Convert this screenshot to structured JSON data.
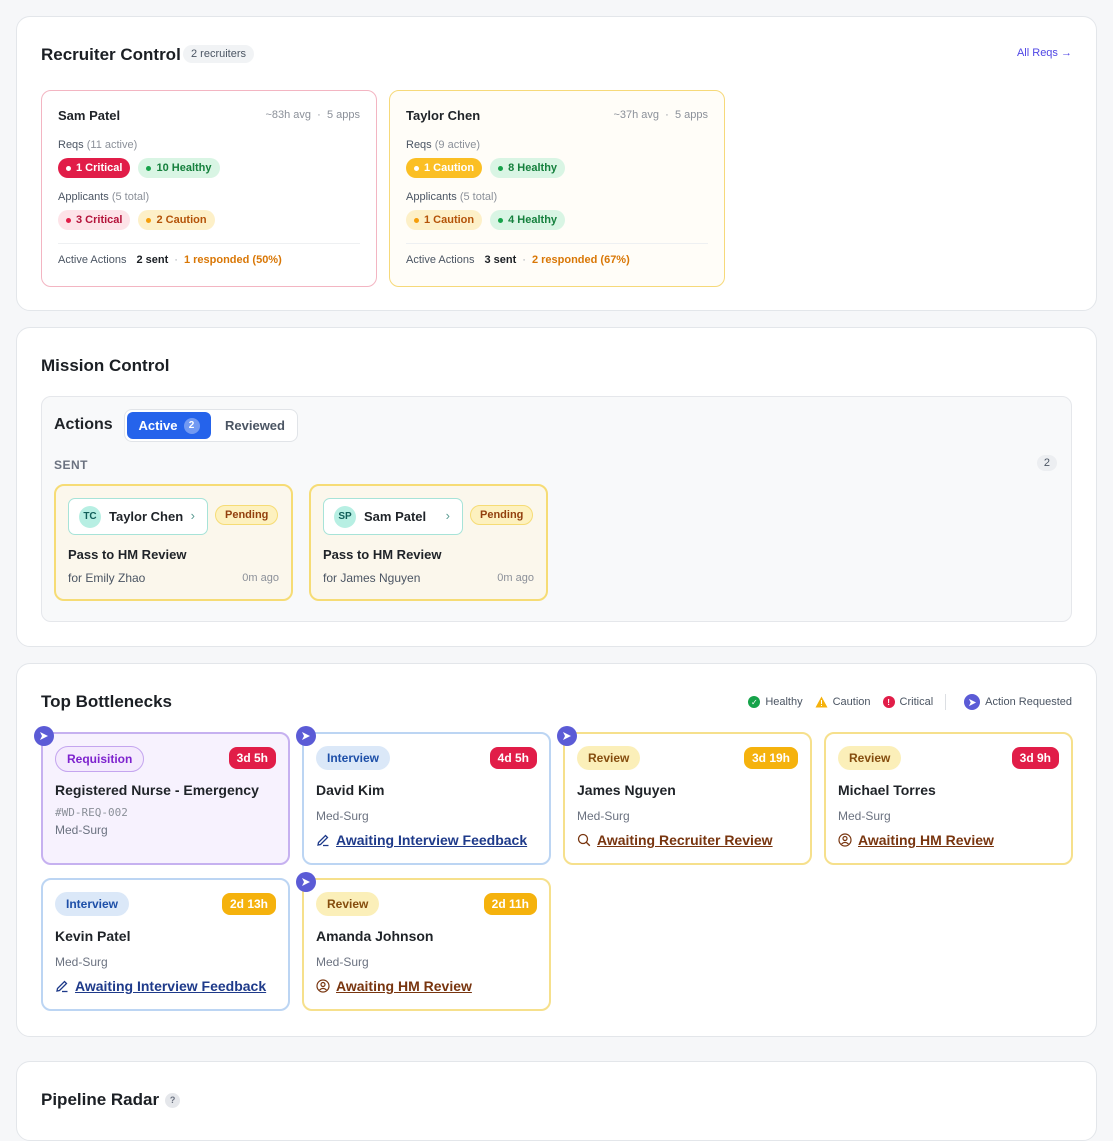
{
  "recruiter_control": {
    "title": "Recruiter Control",
    "count_label": "2 recruiters",
    "all_reqs_label": "All Reqs →",
    "recruiters": [
      {
        "name": "Sam Patel",
        "avg": "~83h avg",
        "apps": "5 apps",
        "reqs_label": "Reqs",
        "reqs_count": "(11 active)",
        "req_chips": [
          "1 Critical",
          "10 Healthy"
        ],
        "applicants_label": "Applicants",
        "applicants_count": "(5 total)",
        "applicant_chips": [
          "3 Critical",
          "2 Caution"
        ],
        "actions_label": "Active Actions",
        "sent": "2 sent",
        "responded": "1 responded (50%)"
      },
      {
        "name": "Taylor Chen",
        "avg": "~37h avg",
        "apps": "5 apps",
        "reqs_label": "Reqs",
        "reqs_count": "(9 active)",
        "req_chips": [
          "1 Caution",
          "8 Healthy"
        ],
        "applicants_label": "Applicants",
        "applicants_count": "(5 total)",
        "applicant_chips": [
          "1 Caution",
          "4 Healthy"
        ],
        "actions_label": "Active Actions",
        "sent": "3 sent",
        "responded": "2 responded (67%)"
      }
    ],
    "separator": "·"
  },
  "mission_control": {
    "title": "Mission Control",
    "actions_title": "Actions",
    "tab_active": "Active",
    "tab_active_count": "2",
    "tab_reviewed": "Reviewed",
    "sent_label": "SENT",
    "sent_count": "2",
    "cards": [
      {
        "initials": "TC",
        "name": "Taylor Chen",
        "status": "Pending",
        "title": "Pass to HM Review",
        "for": "for Emily Zhao",
        "ago": "0m ago"
      },
      {
        "initials": "SP",
        "name": "Sam Patel",
        "status": "Pending",
        "title": "Pass to HM Review",
        "for": "for James Nguyen",
        "ago": "0m ago"
      }
    ]
  },
  "bottlenecks": {
    "title": "Top Bottlenecks",
    "legend": [
      "Healthy",
      "Caution",
      "Critical",
      "Action Requested"
    ],
    "legend_colors": {
      "healthy": "#16a34a",
      "caution": "#f5b20d",
      "critical": "#e11d48",
      "action": "#5b5bd6"
    },
    "cards": [
      {
        "stage": "Requisition",
        "age": "3d 5h",
        "name": "Registered Nurse - Emergency",
        "id": "#WD-REQ-002",
        "dept": "Med-Surg",
        "status": ""
      },
      {
        "stage": "Interview",
        "age": "4d 5h",
        "name": "David Kim",
        "dept": "Med-Surg",
        "status": "Awaiting Interview Feedback",
        "icon": "edit-icon"
      },
      {
        "stage": "Review",
        "age": "3d 19h",
        "name": "James Nguyen",
        "dept": "Med-Surg",
        "status": "Awaiting Recruiter Review",
        "icon": "search-icon"
      },
      {
        "stage": "Review",
        "age": "3d 9h",
        "name": "Michael Torres",
        "dept": "Med-Surg",
        "status": "Awaiting HM Review",
        "icon": "user-circle-icon"
      },
      {
        "stage": "Interview",
        "age": "2d 13h",
        "name": "Kevin Patel",
        "dept": "Med-Surg",
        "status": "Awaiting Interview Feedback",
        "icon": "edit-icon"
      },
      {
        "stage": "Review",
        "age": "2d 11h",
        "name": "Amanda Johnson",
        "dept": "Med-Surg",
        "status": "Awaiting HM Review",
        "icon": "user-circle-icon"
      }
    ]
  },
  "pipeline_radar": {
    "title": "Pipeline Radar",
    "help": "?"
  }
}
